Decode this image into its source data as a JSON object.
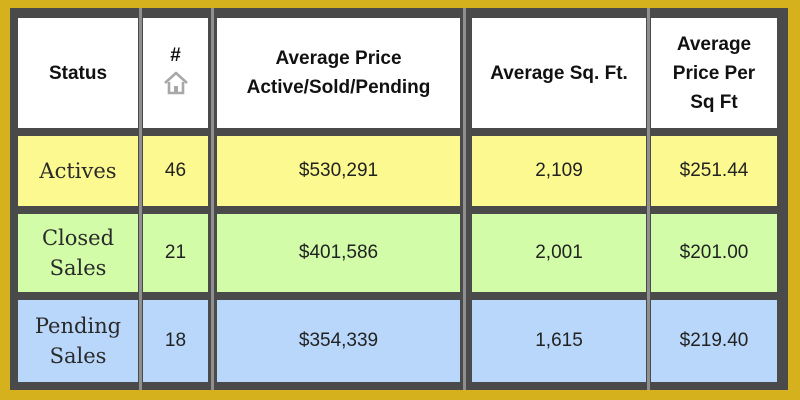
{
  "colors": {
    "border": "#d5b11e",
    "grid": "#4a4a4a",
    "header_bg": "#ffffff",
    "actives_bg": "#fbf98f",
    "closed_bg": "#d2fca8",
    "pending_bg": "#b9d7fb"
  },
  "header": {
    "status": "Status",
    "count": "#",
    "count_icon": "home-icon",
    "avg_price_line1": "Average Price",
    "avg_price_line2": "Active/Sold/Pending",
    "avg_sqft": "Average Sq. Ft.",
    "price_per_sqft_line1": "Average",
    "price_per_sqft_line2": "Price Per",
    "price_per_sqft_line3": "Sq Ft"
  },
  "rows": [
    {
      "status_line1": "Actives",
      "status_line2": "",
      "count": "46",
      "avg_price": "$530,291",
      "avg_sqft": "2,109",
      "price_per_sqft": "$251.44"
    },
    {
      "status_line1": "Closed",
      "status_line2": "Sales",
      "count": "21",
      "avg_price": "$401,586",
      "avg_sqft": "2,001",
      "price_per_sqft": "$201.00"
    },
    {
      "status_line1": "Pending",
      "status_line2": "Sales",
      "count": "18",
      "avg_price": "$354,339",
      "avg_sqft": "1,615",
      "price_per_sqft": "$219.40"
    }
  ]
}
